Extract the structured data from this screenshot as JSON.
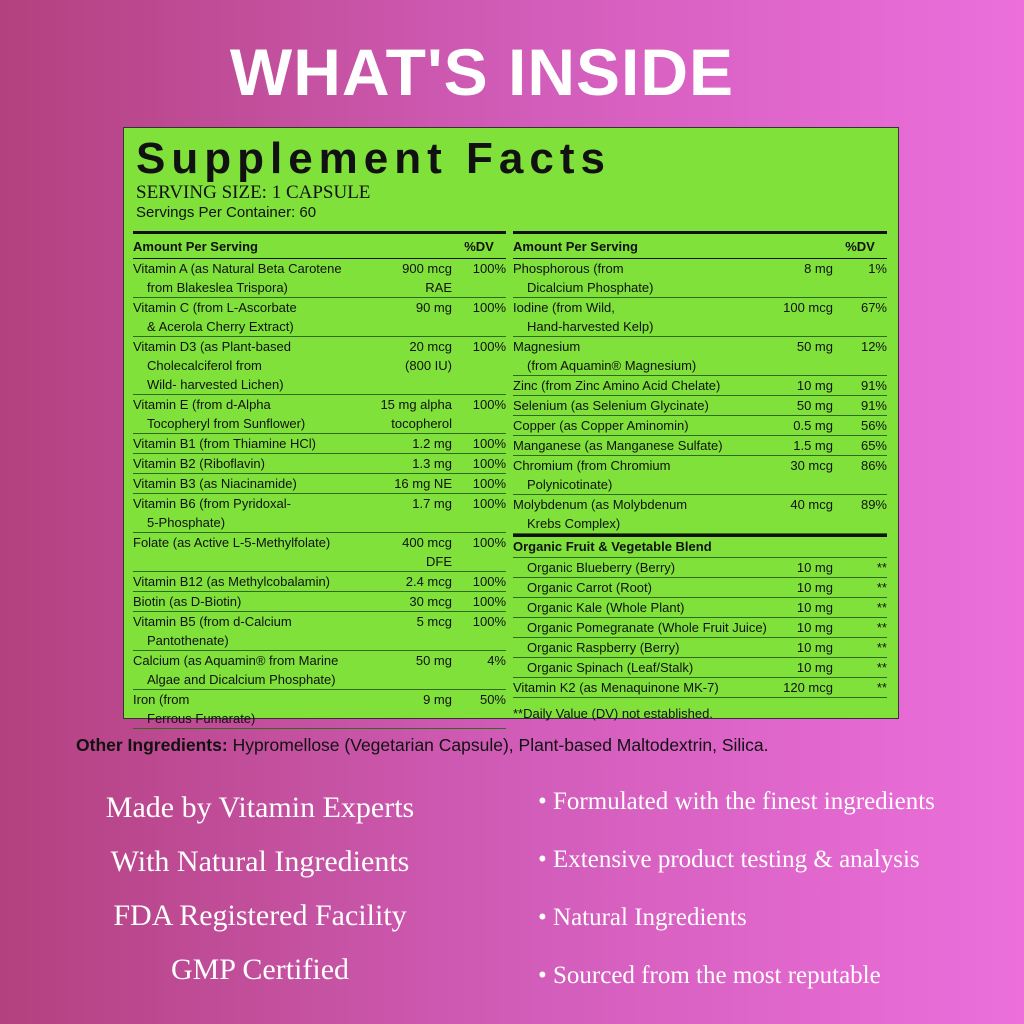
{
  "title": "WHAT'S INSIDE",
  "panel": {
    "heading": "Supplement Facts",
    "serving_size": "SERVING SIZE: 1 CAPSULE",
    "servings": "Servings Per Container: 60",
    "left": {
      "header": [
        "Amount Per Serving",
        "%DV"
      ],
      "rows": [
        {
          "name": [
            "Vitamin A (as Natural Beta Carotene",
            "from Blakeslea Trispora)"
          ],
          "amount": [
            "900 mcg",
            "RAE"
          ],
          "dv": "100%"
        },
        {
          "name": [
            "Vitamin C (from L-Ascorbate",
            "& Acerola Cherry Extract)"
          ],
          "amount": [
            "90 mg"
          ],
          "dv": "100%"
        },
        {
          "name": [
            "Vitamin D3 (as Plant-based",
            "Cholecalciferol from",
            "Wild- harvested Lichen)"
          ],
          "amount": [
            "20 mcg",
            "(800 IU)"
          ],
          "dv": "100%"
        },
        {
          "name": [
            "Vitamin E (from d-Alpha",
            "Tocopheryl from Sunflower)"
          ],
          "amount": [
            "15 mg alpha",
            "tocopherol"
          ],
          "dv": "100%"
        },
        {
          "name": [
            "Vitamin B1 (from Thiamine HCl)"
          ],
          "amount": [
            "1.2 mg"
          ],
          "dv": "100%"
        },
        {
          "name": [
            "Vitamin B2 (Riboflavin)"
          ],
          "amount": [
            "1.3 mg"
          ],
          "dv": "100%"
        },
        {
          "name": [
            "Vitamin B3 (as Niacinamide)"
          ],
          "amount": [
            "16 mg NE"
          ],
          "dv": "100%"
        },
        {
          "name": [
            "Vitamin B6 (from Pyridoxal-",
            "5-Phosphate)"
          ],
          "amount": [
            "1.7 mg"
          ],
          "dv": "100%"
        },
        {
          "name": [
            "Folate (as Active L-5-Methylfolate)"
          ],
          "amount": [
            "400 mcg",
            "DFE"
          ],
          "dv": "100%"
        },
        {
          "name": [
            "Vitamin B12 (as Methylcobalamin)"
          ],
          "amount": [
            "2.4 mcg"
          ],
          "dv": "100%"
        },
        {
          "name": [
            "Biotin (as D-Biotin)"
          ],
          "amount": [
            "30 mcg"
          ],
          "dv": "100%"
        },
        {
          "name": [
            "Vitamin B5 (from d-Calcium",
            "Pantothenate)"
          ],
          "amount": [
            "5 mcg"
          ],
          "dv": "100%"
        },
        {
          "name": [
            "Calcium (as Aquamin® from Marine",
            "Algae and Dicalcium Phosphate)"
          ],
          "amount": [
            "50 mg"
          ],
          "dv": "4%"
        },
        {
          "name": [
            "Iron (from",
            "Ferrous Fumarate)"
          ],
          "amount": [
            "9 mg"
          ],
          "dv": "50%"
        }
      ]
    },
    "right": {
      "header": [
        "Amount Per Serving",
        "%DV"
      ],
      "rows": [
        {
          "name": [
            "Phosphorous (from",
            "Dicalcium Phosphate)"
          ],
          "amount": [
            "8 mg"
          ],
          "dv": "1%"
        },
        {
          "name": [
            "Iodine (from Wild,",
            "Hand-harvested Kelp)"
          ],
          "amount": [
            "100 mcg"
          ],
          "dv": "67%"
        },
        {
          "name": [
            "Magnesium",
            "(from Aquamin® Magnesium)"
          ],
          "amount": [
            "50 mg"
          ],
          "dv": "12%"
        },
        {
          "name": [
            "Zinc (from Zinc Amino Acid Chelate)"
          ],
          "amount": [
            "10 mg"
          ],
          "dv": "91%"
        },
        {
          "name": [
            "Selenium (as Selenium Glycinate)"
          ],
          "amount": [
            "50 mg"
          ],
          "dv": "91%"
        },
        {
          "name": [
            "Copper (as Copper Aminomin)"
          ],
          "amount": [
            "0.5 mg"
          ],
          "dv": "56%"
        },
        {
          "name": [
            "Manganese (as Manganese Sulfate)"
          ],
          "amount": [
            "1.5 mg"
          ],
          "dv": "65%"
        },
        {
          "name": [
            "Chromium (from Chromium",
            "Polynicotinate)"
          ],
          "amount": [
            "30 mcg"
          ],
          "dv": "86%"
        },
        {
          "name": [
            "Molybdenum (as Molybdenum",
            "Krebs Complex)"
          ],
          "amount": [
            "40 mcg"
          ],
          "dv": "89%"
        }
      ],
      "blend": {
        "header": "Organic Fruit & Vegetable Blend",
        "rows": [
          {
            "name": [
              "Organic Blueberry (Berry)"
            ],
            "amount": [
              "10 mg"
            ],
            "dv": "**"
          },
          {
            "name": [
              "Organic Carrot (Root)"
            ],
            "amount": [
              "10 mg"
            ],
            "dv": "**"
          },
          {
            "name": [
              "Organic Kale (Whole Plant)"
            ],
            "amount": [
              "10 mg"
            ],
            "dv": "**"
          },
          {
            "name": [
              "Organic Pomegranate (Whole Fruit Juice)"
            ],
            "amount": [
              "10 mg"
            ],
            "dv": "**"
          },
          {
            "name": [
              "Organic Raspberry (Berry)"
            ],
            "amount": [
              "10 mg"
            ],
            "dv": "**"
          },
          {
            "name": [
              "Organic Spinach (Leaf/Stalk)"
            ],
            "amount": [
              "10 mg"
            ],
            "dv": "**"
          }
        ]
      },
      "extra": {
        "name": [
          "Vitamin K2 (as Menaquinone MK-7)"
        ],
        "amount": [
          "120 mcg"
        ],
        "dv": "**"
      },
      "footnote": "**Daily Value (DV) not established."
    }
  },
  "other_ingredients": {
    "label": "Other Ingredients:",
    "text": "Hypromellose (Vegetarian Capsule), Plant-based Maltodextrin, Silica."
  },
  "left_list": [
    "Made by Vitamin Experts",
    "With Natural Ingredients",
    "FDA Registered Facility",
    "GMP Certified"
  ],
  "right_list": [
    "Formulated with the finest ingredients",
    "Extensive product testing & analysis",
    "Natural Ingredients",
    "Sourced from the most reputable"
  ]
}
